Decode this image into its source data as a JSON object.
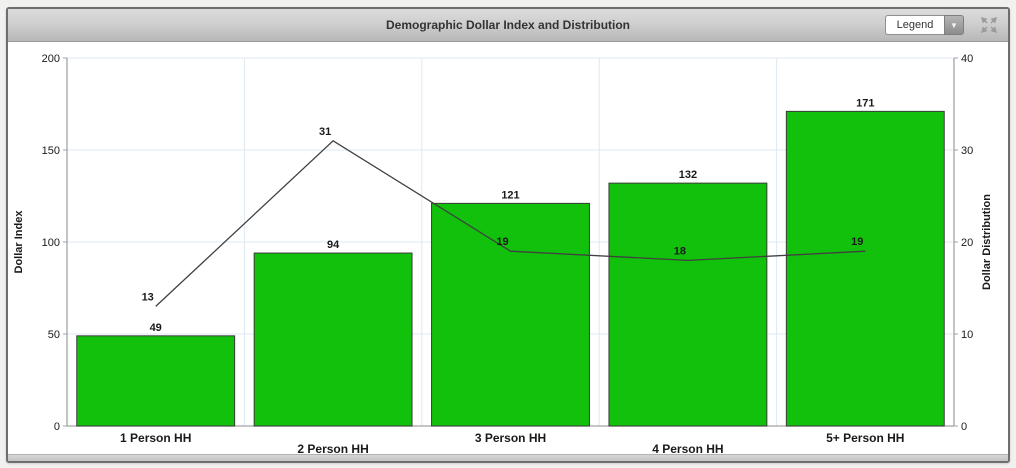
{
  "titlebar": {
    "title": "Demographic Dollar Index and Distribution",
    "legend_label": "Legend",
    "icons": {
      "legend_dropdown_arrow": "chevron-down",
      "window_expand": "expand-arrows"
    }
  },
  "colors": {
    "bar_fill": "#12c10b",
    "bar_stroke": "#3a3a3a",
    "line": "#404040",
    "grid": "#dde9f3",
    "axis": "#a3a3a3",
    "accent_titlebar": "#c9c9c9"
  },
  "chart_data": {
    "type": "bar",
    "title": "Demographic Dollar Index and Distribution",
    "categories": [
      "1 Person HH",
      "2 Person HH",
      "3 Person HH",
      "4 Person HH",
      "5+ Person HH"
    ],
    "series": [
      {
        "name": "Dollar Index",
        "type": "bar",
        "axis": "left",
        "values": [
          49,
          94,
          121,
          132,
          171
        ]
      },
      {
        "name": "Dollar Distribution",
        "type": "line",
        "axis": "right",
        "values": [
          13,
          31,
          19,
          18,
          19
        ]
      }
    ],
    "left_axis": {
      "label": "Dollar Index",
      "min": 0,
      "max": 200,
      "ticks": [
        0,
        50,
        100,
        150,
        200
      ]
    },
    "right_axis": {
      "label": "Dollar Distribution",
      "min": 0,
      "max": 40,
      "ticks": [
        0,
        10,
        20,
        30,
        40
      ]
    },
    "grid": true,
    "legend_position": "collapsed"
  }
}
